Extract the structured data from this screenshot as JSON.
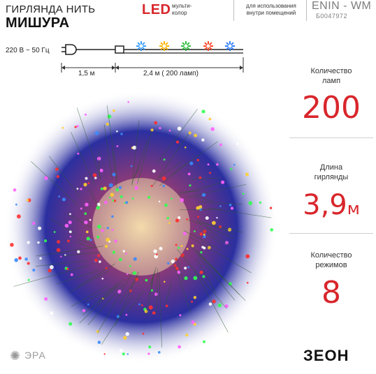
{
  "header": {
    "title_line1": "ГИРЛЯНДА НИТЬ",
    "title_line2": "МИШУРА",
    "led_label": "LED",
    "led_sub_line1": "мульти-",
    "led_sub_line2": "колор",
    "indoor_line1": "для использования",
    "indoor_line2": "внутри помещений",
    "model": "ENIN - WM",
    "code": "Б0047972"
  },
  "diagram": {
    "voltage": "220 В ~ 50 Гц",
    "cable_length": "1,5 м",
    "garland_length": "2,4  м ( 200 ламп)",
    "bulb_colors": [
      "#3aa0ff",
      "#ffb400",
      "#2fbf3f",
      "#ff4a2a",
      "#2f7dff"
    ]
  },
  "stats": [
    {
      "label_line1": "Количество",
      "label_line2": "ламп",
      "value": "200",
      "unit": ""
    },
    {
      "label_line1": "Длина",
      "label_line2": "гирлянды",
      "value": "3,9",
      "unit": "м"
    },
    {
      "label_line1": "Количество",
      "label_line2": "режимов",
      "value": "8",
      "unit": ""
    }
  ],
  "logos": {
    "era": "ЭРА",
    "zeon": "ЗЕОН"
  },
  "colors": {
    "accent_red": "#d8262b"
  }
}
